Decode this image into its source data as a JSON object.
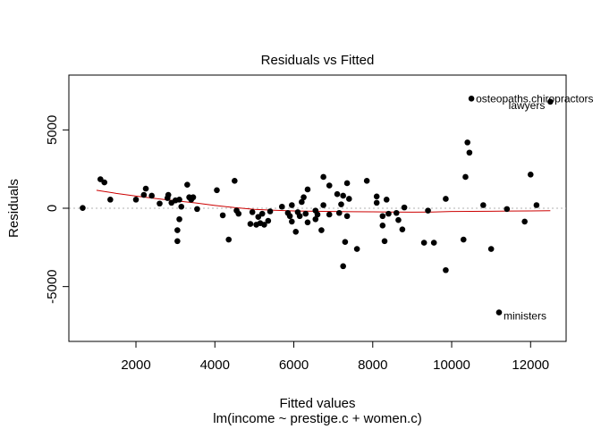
{
  "chart_data": {
    "type": "scatter",
    "title": "Residuals vs Fitted",
    "xlabel": "Fitted values",
    "subtitle": "lm(income ~ prestige.c + women.c)",
    "ylabel": "Residuals",
    "xlim": [
      300,
      12900
    ],
    "ylim": [
      -8500,
      8500
    ],
    "xticks": [
      2000,
      4000,
      6000,
      8000,
      10000,
      12000
    ],
    "yticks": [
      -5000,
      0,
      5000
    ],
    "grid": false,
    "zero_line": {
      "y": 0,
      "color": "#b0b0b0",
      "style": "dotted"
    },
    "point_color": "#000000",
    "smooth_color": "#cc0000",
    "points": [
      {
        "x": 650,
        "y": 20
      },
      {
        "x": 1100,
        "y": 1850
      },
      {
        "x": 1200,
        "y": 1650
      },
      {
        "x": 1350,
        "y": 550
      },
      {
        "x": 2000,
        "y": 550
      },
      {
        "x": 2200,
        "y": 850
      },
      {
        "x": 2250,
        "y": 1250
      },
      {
        "x": 2400,
        "y": 800
      },
      {
        "x": 2600,
        "y": 300
      },
      {
        "x": 2800,
        "y": 650
      },
      {
        "x": 2820,
        "y": 850
      },
      {
        "x": 2900,
        "y": 350
      },
      {
        "x": 3000,
        "y": 500
      },
      {
        "x": 3050,
        "y": -1400
      },
      {
        "x": 3050,
        "y": -2100
      },
      {
        "x": 3100,
        "y": -700
      },
      {
        "x": 3100,
        "y": 550
      },
      {
        "x": 3150,
        "y": 100
      },
      {
        "x": 3300,
        "y": 1500
      },
      {
        "x": 3350,
        "y": 700
      },
      {
        "x": 3400,
        "y": 550
      },
      {
        "x": 3450,
        "y": 700
      },
      {
        "x": 3550,
        "y": -50
      },
      {
        "x": 4050,
        "y": 1150
      },
      {
        "x": 4200,
        "y": -450
      },
      {
        "x": 4350,
        "y": -2000
      },
      {
        "x": 4500,
        "y": 1750
      },
      {
        "x": 4550,
        "y": -150
      },
      {
        "x": 4600,
        "y": -350
      },
      {
        "x": 4900,
        "y": -1000
      },
      {
        "x": 4950,
        "y": -250
      },
      {
        "x": 5050,
        "y": -1050
      },
      {
        "x": 5100,
        "y": -550
      },
      {
        "x": 5150,
        "y": -950
      },
      {
        "x": 5200,
        "y": -350
      },
      {
        "x": 5250,
        "y": -1050
      },
      {
        "x": 5350,
        "y": -800
      },
      {
        "x": 5400,
        "y": -200
      },
      {
        "x": 5700,
        "y": 100
      },
      {
        "x": 5850,
        "y": -300
      },
      {
        "x": 5900,
        "y": -500
      },
      {
        "x": 5950,
        "y": 200
      },
      {
        "x": 5950,
        "y": -850
      },
      {
        "x": 6050,
        "y": -1500
      },
      {
        "x": 6100,
        "y": -250
      },
      {
        "x": 6150,
        "y": -500
      },
      {
        "x": 6200,
        "y": 400
      },
      {
        "x": 6250,
        "y": 700
      },
      {
        "x": 6300,
        "y": -350
      },
      {
        "x": 6350,
        "y": 1200
      },
      {
        "x": 6350,
        "y": -900
      },
      {
        "x": 6550,
        "y": -700
      },
      {
        "x": 6550,
        "y": -150
      },
      {
        "x": 6600,
        "y": -400
      },
      {
        "x": 6700,
        "y": -1400
      },
      {
        "x": 6750,
        "y": 2000
      },
      {
        "x": 6750,
        "y": 200
      },
      {
        "x": 6900,
        "y": 1450
      },
      {
        "x": 6900,
        "y": -400
      },
      {
        "x": 7100,
        "y": 900
      },
      {
        "x": 7150,
        "y": -300
      },
      {
        "x": 7200,
        "y": 250
      },
      {
        "x": 7250,
        "y": 800
      },
      {
        "x": 7250,
        "y": -3700
      },
      {
        "x": 7300,
        "y": -2150
      },
      {
        "x": 7350,
        "y": -500
      },
      {
        "x": 7350,
        "y": 1600
      },
      {
        "x": 7400,
        "y": 600
      },
      {
        "x": 7600,
        "y": -2600
      },
      {
        "x": 7850,
        "y": 1750
      },
      {
        "x": 8100,
        "y": 350
      },
      {
        "x": 8100,
        "y": 750
      },
      {
        "x": 8250,
        "y": -500
      },
      {
        "x": 8250,
        "y": -1100
      },
      {
        "x": 8300,
        "y": -2100
      },
      {
        "x": 8350,
        "y": 550
      },
      {
        "x": 8400,
        "y": -350
      },
      {
        "x": 8600,
        "y": -300
      },
      {
        "x": 8650,
        "y": -750
      },
      {
        "x": 8750,
        "y": -1350
      },
      {
        "x": 8800,
        "y": 50
      },
      {
        "x": 9300,
        "y": -2200
      },
      {
        "x": 9400,
        "y": -150
      },
      {
        "x": 9550,
        "y": -2200
      },
      {
        "x": 9850,
        "y": 600
      },
      {
        "x": 9850,
        "y": -3950
      },
      {
        "x": 10300,
        "y": -2000
      },
      {
        "x": 10350,
        "y": 2000
      },
      {
        "x": 10400,
        "y": 4200
      },
      {
        "x": 10450,
        "y": 3550
      },
      {
        "x": 10800,
        "y": 200
      },
      {
        "x": 11000,
        "y": -2600
      },
      {
        "x": 11400,
        "y": -50
      },
      {
        "x": 11850,
        "y": -850
      },
      {
        "x": 12000,
        "y": 2150
      },
      {
        "x": 12150,
        "y": 200
      }
    ],
    "labeled_points": [
      {
        "x": 10500,
        "y": 7000,
        "label": "osteopaths.chiropractors"
      },
      {
        "x": 12500,
        "y": 6800,
        "label": "lawyers"
      },
      {
        "x": 11200,
        "y": -6650,
        "label": "ministers"
      }
    ],
    "smooth": {
      "x": [
        1000,
        1500,
        2000,
        2500,
        3000,
        3500,
        4000,
        4500,
        5000,
        5500,
        6000,
        6500,
        7000,
        7500,
        8000,
        8500,
        9000,
        9500,
        10000,
        10500,
        11000,
        11500,
        12000,
        12500
      ],
      "y": [
        1150,
        950,
        780,
        620,
        480,
        340,
        180,
        40,
        -70,
        -130,
        -170,
        -190,
        -210,
        -220,
        -230,
        -240,
        -250,
        -240,
        -210,
        -200,
        -190,
        -180,
        -170,
        -160
      ]
    }
  }
}
